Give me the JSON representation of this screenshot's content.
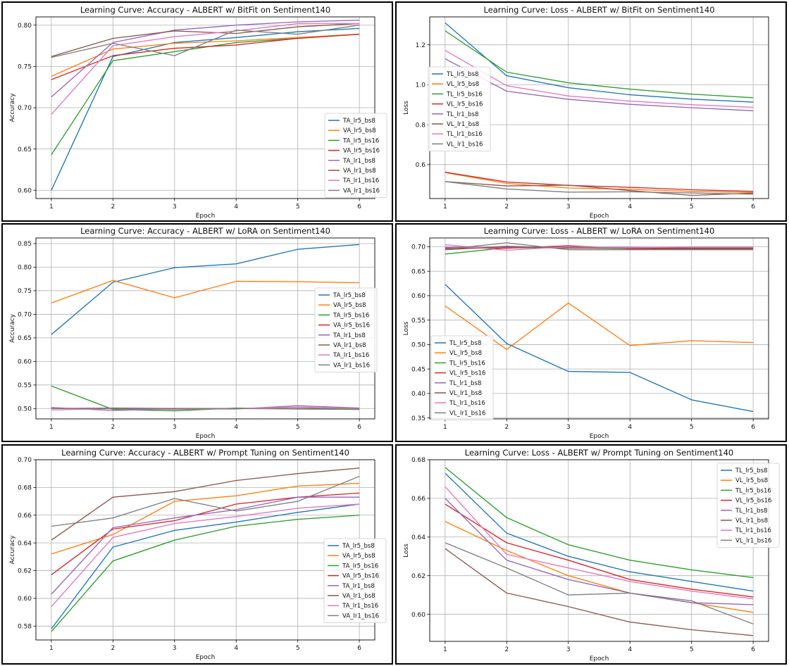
{
  "chart_data": [
    {
      "type": "line",
      "title": "Learning Curve: Accuracy - ALBERT w/ BitFit on Sentiment140",
      "xlabel": "Epoch",
      "ylabel": "Accuracy",
      "x": [
        1,
        2,
        3,
        4,
        5,
        6
      ],
      "xticks": [
        "1",
        "2",
        "3",
        "4",
        "5",
        "6"
      ],
      "ylim": [
        0.59,
        0.81
      ],
      "yticks": [
        0.6,
        0.65,
        0.7,
        0.75,
        0.8
      ],
      "ytick_labels": [
        "0.60",
        "0.65",
        "0.70",
        "0.75",
        "0.80"
      ],
      "grid": true,
      "legend_position": "center-right",
      "series": [
        {
          "name": "TA_lr5_bs8",
          "color": "#1f77b4",
          "values": [
            0.6,
            0.762,
            0.779,
            0.785,
            0.792,
            0.796
          ]
        },
        {
          "name": "VA_lr5_bs8",
          "color": "#ff7f0e",
          "values": [
            0.738,
            0.771,
            0.778,
            0.781,
            0.785,
            0.789
          ]
        },
        {
          "name": "TA_lr5_bs16",
          "color": "#2ca02c",
          "values": [
            0.643,
            0.757,
            0.768,
            0.779,
            0.784,
            0.789
          ]
        },
        {
          "name": "VA_lr5_bs16",
          "color": "#d62728",
          "values": [
            0.734,
            0.763,
            0.772,
            0.776,
            0.784,
            0.789
          ]
        },
        {
          "name": "TA_lr1_bs8",
          "color": "#9467bd",
          "values": [
            0.713,
            0.779,
            0.794,
            0.8,
            0.804,
            0.806
          ]
        },
        {
          "name": "VA_lr1_bs8",
          "color": "#8c564b",
          "values": [
            0.762,
            0.784,
            0.793,
            0.79,
            0.798,
            0.802
          ]
        },
        {
          "name": "TA_lr1_bs16",
          "color": "#e377c2",
          "values": [
            0.692,
            0.775,
            0.786,
            0.793,
            0.802,
            0.802
          ]
        },
        {
          "name": "VA_lr1_bs16",
          "color": "#7f7f7f",
          "values": [
            0.761,
            0.778,
            0.763,
            0.794,
            0.789,
            0.8
          ]
        }
      ]
    },
    {
      "type": "line",
      "title": "Learning Curve: Loss - ALBERT w/ BitFit on Sentiment140",
      "xlabel": "Epoch",
      "ylabel": "Loss",
      "x": [
        1,
        2,
        3,
        4,
        5,
        6
      ],
      "xticks": [
        "1",
        "2",
        "3",
        "4",
        "5",
        "6"
      ],
      "ylim": [
        0.43,
        1.34
      ],
      "yticks": [
        0.6,
        0.8,
        1.0,
        1.2
      ],
      "ytick_labels": [
        "0.6",
        "0.8",
        "1.0",
        "1.2"
      ],
      "grid": true,
      "legend_position": "center-left",
      "series": [
        {
          "name": "TL_lr5_bs8",
          "color": "#1f77b4",
          "values": [
            1.31,
            1.045,
            0.985,
            0.95,
            0.928,
            0.913
          ]
        },
        {
          "name": "VL_lr5_bs8",
          "color": "#ff7f0e",
          "values": [
            0.56,
            0.506,
            0.483,
            0.476,
            0.466,
            0.46
          ]
        },
        {
          "name": "TL_lr5_bs16",
          "color": "#2ca02c",
          "values": [
            1.27,
            1.063,
            1.01,
            0.978,
            0.953,
            0.935
          ]
        },
        {
          "name": "VL_lr5_bs16",
          "color": "#d62728",
          "values": [
            0.562,
            0.513,
            0.496,
            0.486,
            0.474,
            0.466
          ]
        },
        {
          "name": "TL_lr1_bs8",
          "color": "#9467bd",
          "values": [
            1.13,
            0.968,
            0.927,
            0.902,
            0.885,
            0.87
          ]
        },
        {
          "name": "VL_lr1_bs8",
          "color": "#8c564b",
          "values": [
            0.515,
            0.493,
            0.497,
            0.47,
            0.446,
            0.457
          ]
        },
        {
          "name": "TL_lr1_bs16",
          "color": "#e377c2",
          "values": [
            1.172,
            0.995,
            0.944,
            0.918,
            0.9,
            0.887
          ]
        },
        {
          "name": "VL_lr1_bs16",
          "color": "#7f7f7f",
          "values": [
            0.515,
            0.478,
            0.462,
            0.464,
            0.458,
            0.452
          ]
        }
      ]
    },
    {
      "type": "line",
      "title": "Learning Curve: Accuracy - ALBERT w/ LoRA on Sentiment140",
      "xlabel": "Epoch",
      "ylabel": "Accuracy",
      "x": [
        1,
        2,
        3,
        4,
        5,
        6
      ],
      "xticks": [
        "1",
        "2",
        "3",
        "4",
        "5",
        "6"
      ],
      "ylim": [
        0.478,
        0.862
      ],
      "yticks": [
        0.5,
        0.55,
        0.6,
        0.65,
        0.7,
        0.75,
        0.8,
        0.85
      ],
      "ytick_labels": [
        "0.50",
        "0.55",
        "0.60",
        "0.65",
        "0.70",
        "0.75",
        "0.80",
        "0.85"
      ],
      "grid": true,
      "legend_position": "center-right",
      "series": [
        {
          "name": "TA_lr5_bs8",
          "color": "#1f77b4",
          "values": [
            0.657,
            0.768,
            0.799,
            0.807,
            0.838,
            0.848
          ]
        },
        {
          "name": "VA_lr5_bs8",
          "color": "#ff7f0e",
          "values": [
            0.724,
            0.772,
            0.735,
            0.77,
            0.769,
            0.767
          ]
        },
        {
          "name": "TA_lr5_bs16",
          "color": "#2ca02c",
          "values": [
            0.548,
            0.498,
            0.495,
            0.501,
            0.499,
            0.498
          ]
        },
        {
          "name": "VA_lr5_bs16",
          "color": "#d62728",
          "values": [
            0.5,
            0.5,
            0.5,
            0.5,
            0.5,
            0.5
          ]
        },
        {
          "name": "TA_lr1_bs8",
          "color": "#9467bd",
          "values": [
            0.502,
            0.496,
            0.499,
            0.499,
            0.506,
            0.501
          ]
        },
        {
          "name": "VA_lr1_bs8",
          "color": "#8c564b",
          "values": [
            0.5,
            0.501,
            0.5,
            0.5,
            0.5,
            0.5
          ]
        },
        {
          "name": "TA_lr1_bs16",
          "color": "#e377c2",
          "values": [
            0.497,
            0.5,
            0.498,
            0.5,
            0.503,
            0.5
          ]
        },
        {
          "name": "VA_lr1_bs16",
          "color": "#7f7f7f",
          "values": [
            0.5,
            0.5,
            0.499,
            0.5,
            0.499,
            0.499
          ]
        }
      ]
    },
    {
      "type": "line",
      "title": "Learning Curve: Loss - ALBERT w/ LoRA on Sentiment140",
      "xlabel": "Epoch",
      "ylabel": "Loss",
      "x": [
        1,
        2,
        3,
        4,
        5,
        6
      ],
      "xticks": [
        "1",
        "2",
        "3",
        "4",
        "5",
        "6"
      ],
      "ylim": [
        0.348,
        0.718
      ],
      "yticks": [
        0.35,
        0.4,
        0.45,
        0.5,
        0.55,
        0.6,
        0.65,
        0.7
      ],
      "ytick_labels": [
        "0.35",
        "0.40",
        "0.45",
        "0.50",
        "0.55",
        "0.60",
        "0.65",
        "0.70"
      ],
      "grid": true,
      "legend_position": "lower-left",
      "series": [
        {
          "name": "TL_lr5_bs8",
          "color": "#1f77b4",
          "values": [
            0.623,
            0.502,
            0.445,
            0.443,
            0.387,
            0.363
          ]
        },
        {
          "name": "VL_lr5_bs8",
          "color": "#ff7f0e",
          "values": [
            0.579,
            0.49,
            0.585,
            0.498,
            0.508,
            0.504
          ]
        },
        {
          "name": "TL_lr5_bs16",
          "color": "#2ca02c",
          "values": [
            0.685,
            0.698,
            0.698,
            0.696,
            0.696,
            0.696
          ]
        },
        {
          "name": "VL_lr5_bs16",
          "color": "#d62728",
          "values": [
            0.697,
            0.697,
            0.702,
            0.696,
            0.695,
            0.695
          ]
        },
        {
          "name": "TL_lr1_bs8",
          "color": "#9467bd",
          "values": [
            0.699,
            0.699,
            0.699,
            0.699,
            0.698,
            0.698
          ]
        },
        {
          "name": "VL_lr1_bs8",
          "color": "#8c564b",
          "values": [
            0.694,
            0.701,
            0.697,
            0.697,
            0.697,
            0.697
          ]
        },
        {
          "name": "TL_lr1_bs16",
          "color": "#e377c2",
          "values": [
            0.704,
            0.693,
            0.7,
            0.698,
            0.7,
            0.7
          ]
        },
        {
          "name": "VL_lr1_bs16",
          "color": "#7f7f7f",
          "values": [
            0.695,
            0.708,
            0.694,
            0.694,
            0.694,
            0.694
          ]
        }
      ]
    },
    {
      "type": "line",
      "title": "Learning Curve: Accuracy - ALBERT w/ Prompt Tuning on Sentiment140",
      "xlabel": "Epoch",
      "ylabel": "Accuracy",
      "x": [
        1,
        2,
        3,
        4,
        5,
        6
      ],
      "xticks": [
        "1",
        "2",
        "3",
        "4",
        "5",
        "6"
      ],
      "ylim": [
        0.57,
        0.7
      ],
      "yticks": [
        0.58,
        0.6,
        0.62,
        0.64,
        0.66,
        0.68,
        0.7
      ],
      "ytick_labels": [
        "0.58",
        "0.60",
        "0.62",
        "0.64",
        "0.66",
        "0.68",
        "0.70"
      ],
      "grid": true,
      "legend_position": "lower-right",
      "series": [
        {
          "name": "TA_lr5_bs8",
          "color": "#1f77b4",
          "values": [
            0.578,
            0.637,
            0.649,
            0.655,
            0.662,
            0.668
          ]
        },
        {
          "name": "VA_lr5_bs8",
          "color": "#ff7f0e",
          "values": [
            0.632,
            0.646,
            0.67,
            0.674,
            0.681,
            0.683
          ]
        },
        {
          "name": "TA_lr5_bs16",
          "color": "#2ca02c",
          "values": [
            0.576,
            0.627,
            0.642,
            0.652,
            0.657,
            0.66
          ]
        },
        {
          "name": "VA_lr5_bs16",
          "color": "#d62728",
          "values": [
            0.617,
            0.65,
            0.656,
            0.668,
            0.673,
            0.676
          ]
        },
        {
          "name": "TA_lr1_bs8",
          "color": "#9467bd",
          "values": [
            0.603,
            0.651,
            0.658,
            0.664,
            0.673,
            0.673
          ]
        },
        {
          "name": "VA_lr1_bs8",
          "color": "#8c564b",
          "values": [
            0.642,
            0.673,
            0.677,
            0.685,
            0.69,
            0.694
          ]
        },
        {
          "name": "TA_lr1_bs16",
          "color": "#e377c2",
          "values": [
            0.594,
            0.644,
            0.654,
            0.659,
            0.665,
            0.668
          ]
        },
        {
          "name": "VA_lr1_bs16",
          "color": "#7f7f7f",
          "values": [
            0.652,
            0.658,
            0.672,
            0.663,
            0.67,
            0.688
          ]
        }
      ]
    },
    {
      "type": "line",
      "title": "Learning Curve: Loss - ALBERT w/ Prompt Tuning on Sentiment140",
      "xlabel": "Epoch",
      "ylabel": "Loss",
      "x": [
        1,
        2,
        3,
        4,
        5,
        6
      ],
      "xticks": [
        "1",
        "2",
        "3",
        "4",
        "5",
        "6"
      ],
      "ylim": [
        0.586,
        0.68
      ],
      "yticks": [
        0.6,
        0.62,
        0.64,
        0.66,
        0.68
      ],
      "ytick_labels": [
        "0.60",
        "0.62",
        "0.64",
        "0.66",
        "0.68"
      ],
      "grid": true,
      "legend_position": "upper-right",
      "series": [
        {
          "name": "TL_lr5_bs8",
          "color": "#1f77b4",
          "values": [
            0.673,
            0.642,
            0.63,
            0.622,
            0.617,
            0.612
          ]
        },
        {
          "name": "VL_lr5_bs8",
          "color": "#ff7f0e",
          "values": [
            0.648,
            0.633,
            0.62,
            0.611,
            0.606,
            0.601
          ]
        },
        {
          "name": "TL_lr5_bs16",
          "color": "#2ca02c",
          "values": [
            0.676,
            0.65,
            0.636,
            0.628,
            0.623,
            0.619
          ]
        },
        {
          "name": "VL_lr5_bs16",
          "color": "#d62728",
          "values": [
            0.657,
            0.637,
            0.628,
            0.618,
            0.613,
            0.609
          ]
        },
        {
          "name": "TL_lr1_bs8",
          "color": "#9467bd",
          "values": [
            0.66,
            0.628,
            0.618,
            0.611,
            0.606,
            0.605
          ]
        },
        {
          "name": "VL_lr1_bs8",
          "color": "#8c564b",
          "values": [
            0.634,
            0.611,
            0.604,
            0.596,
            0.592,
            0.589
          ]
        },
        {
          "name": "TL_lr1_bs16",
          "color": "#e377c2",
          "values": [
            0.666,
            0.631,
            0.624,
            0.617,
            0.612,
            0.608
          ]
        },
        {
          "name": "VL_lr1_bs16",
          "color": "#7f7f7f",
          "values": [
            0.637,
            0.624,
            0.61,
            0.611,
            0.607,
            0.595
          ]
        }
      ]
    }
  ]
}
